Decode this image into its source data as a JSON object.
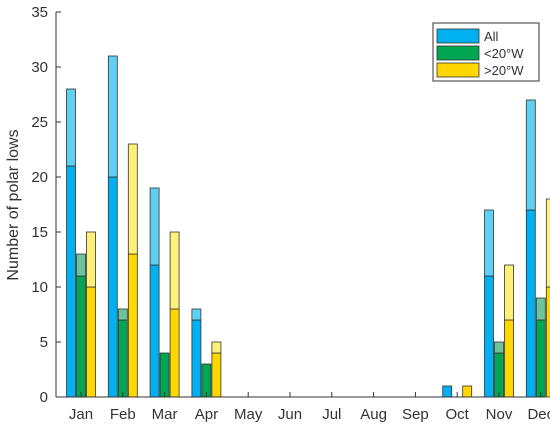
{
  "chart_data": {
    "type": "bar",
    "title": "",
    "xlabel": "",
    "ylabel": "Number of polar lows",
    "ylim": [
      0,
      35
    ],
    "yticks": [
      0,
      5,
      10,
      15,
      20,
      25,
      30,
      35
    ],
    "grid": false,
    "legend_position": "top-right",
    "categories": [
      "Jan",
      "Feb",
      "Mar",
      "Apr",
      "May",
      "Jun",
      "Jul",
      "Aug",
      "Sep",
      "Oct",
      "Nov",
      "Dec"
    ],
    "series": [
      {
        "name": "All",
        "color": "#00b0f0",
        "light_color": "#5fd0f4",
        "total": [
          28,
          31,
          19,
          8,
          0,
          0,
          0,
          0,
          0,
          1,
          17,
          27
        ],
        "lower": [
          21,
          20,
          12,
          7,
          0,
          0,
          0,
          0,
          0,
          1,
          11,
          17
        ]
      },
      {
        "name": "<20°W",
        "color": "#00a651",
        "light_color": "#6cc49a",
        "total": [
          13,
          8,
          4,
          3,
          0,
          0,
          0,
          0,
          0,
          0,
          5,
          9
        ],
        "lower": [
          11,
          7,
          4,
          3,
          0,
          0,
          0,
          0,
          0,
          0,
          4,
          7
        ]
      },
      {
        "name": ">20°W",
        "color": "#ffd700",
        "light_color": "#fff07a",
        "total": [
          15,
          23,
          15,
          5,
          0,
          0,
          0,
          0,
          0,
          1,
          12,
          18
        ],
        "lower": [
          10,
          13,
          8,
          4,
          0,
          0,
          0,
          0,
          0,
          1,
          7,
          10
        ]
      }
    ]
  }
}
